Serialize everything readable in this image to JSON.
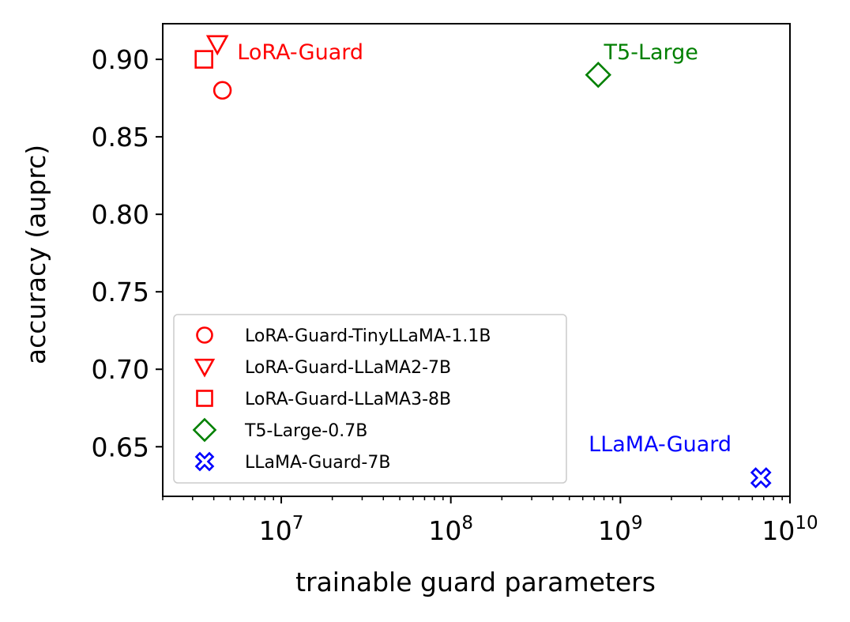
{
  "chart_data": {
    "type": "scatter",
    "xlabel": "trainable guard parameters",
    "ylabel": "accuracy (auprc)",
    "xscale": "log",
    "xlim": [
      2000000,
      10000000000
    ],
    "ylim": [
      0.618,
      0.923
    ],
    "x_ticks": [
      {
        "value": 10000000,
        "base": "10",
        "exp": "7"
      },
      {
        "value": 100000000,
        "base": "10",
        "exp": "8"
      },
      {
        "value": 1000000000,
        "base": "10",
        "exp": "9"
      },
      {
        "value": 10000000000,
        "base": "10",
        "exp": "10"
      }
    ],
    "y_ticks": [
      {
        "value": 0.65,
        "label": "0.65"
      },
      {
        "value": 0.7,
        "label": "0.70"
      },
      {
        "value": 0.75,
        "label": "0.75"
      },
      {
        "value": 0.8,
        "label": "0.80"
      },
      {
        "value": 0.85,
        "label": "0.85"
      },
      {
        "value": 0.9,
        "label": "0.90"
      }
    ],
    "series": [
      {
        "name": "LoRA-Guard-TinyLLaMA-1.1B",
        "marker": "circle",
        "color": "#ff0000",
        "x": [
          4500000
        ],
        "y": [
          0.88
        ]
      },
      {
        "name": "LoRA-Guard-LLaMA2-7B",
        "marker": "triangle-down",
        "color": "#ff0000",
        "x": [
          4200000
        ],
        "y": [
          0.91
        ]
      },
      {
        "name": "LoRA-Guard-LLaMA3-8B",
        "marker": "square",
        "color": "#ff0000",
        "x": [
          3500000
        ],
        "y": [
          0.9
        ]
      },
      {
        "name": "T5-Large-0.7B",
        "marker": "diamond",
        "color": "#008000",
        "x": [
          740000000
        ],
        "y": [
          0.89
        ]
      },
      {
        "name": "LLaMA-Guard-7B",
        "marker": "x-filled",
        "color": "#0000ff",
        "x": [
          6740000000
        ],
        "y": [
          0.63
        ]
      }
    ],
    "annotations": [
      {
        "text": "LoRA-Guard",
        "color": "#ff0000",
        "x": 5500000,
        "y": 0.9
      },
      {
        "text": "T5-Large",
        "color": "#008000",
        "x": 800000000,
        "y": 0.9
      },
      {
        "text": "LLaMA-Guard",
        "color": "#0000ff",
        "x": 650000000,
        "y": 0.647
      }
    ],
    "legend": {
      "position": "lower-left"
    },
    "grid": false
  }
}
